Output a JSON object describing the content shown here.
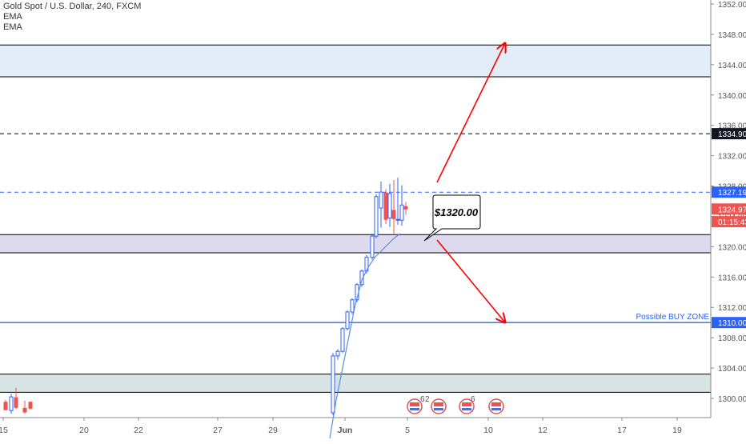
{
  "legend": {
    "symbol_line": "Gold Spot / U.S. Dollar, 240, FXCM",
    "indicator_1": "EMA",
    "indicator_2": "EMA"
  },
  "callout": {
    "text": "$1320.00"
  },
  "zone_label": "Possible BUY ZONE",
  "price_axis": {
    "ticks": [
      1352,
      1348,
      1344,
      1340,
      1336,
      1332,
      1328,
      1324,
      1320,
      1316,
      1312,
      1308,
      1304,
      1300
    ],
    "tick_labels": [
      "1352.00",
      "1348.00",
      "1344.00",
      "1340.00",
      "1336.00",
      "1332.00",
      "1328.00",
      "1324.00",
      "1320.00",
      "1316.00",
      "1312.00",
      "1308.00",
      "1304.00",
      "1300.00"
    ],
    "badges": [
      {
        "label": "1334.90",
        "value": 1334.9,
        "color": "#131722"
      },
      {
        "label": "1327.19",
        "value": 1327.19,
        "color": "#2962ff"
      },
      {
        "label": "1324.97",
        "value": 1324.97,
        "color": "#ef5350"
      },
      {
        "label": "01:15:43",
        "value": 1323.3,
        "color": "#ef5350"
      },
      {
        "label": "1310.00",
        "value": 1310.0,
        "color": "#2962ff"
      }
    ]
  },
  "time_axis": {
    "labels": [
      "15",
      "20",
      "22",
      "27",
      "29",
      "Jun",
      "5",
      "10",
      "12",
      "17",
      "19"
    ]
  },
  "event_markers": [
    "6",
    "2",
    "6"
  ],
  "chart_data": {
    "type": "candlestick",
    "title": "Gold Spot / U.S. Dollar, 240, FXCM",
    "ylim": [
      1298,
      1353
    ],
    "levels": {
      "dashed_black": 1334.9,
      "dashed_blue": 1327.19,
      "buy_zone_line": 1310.0
    },
    "zones": [
      {
        "from": 1342.4,
        "to": 1346.6,
        "color": "#e3ecf9"
      },
      {
        "from": 1319.2,
        "to": 1321.6,
        "color": "#ddd9ef"
      },
      {
        "from": 1300.8,
        "to": 1303.2,
        "color": "#d6e4e4"
      }
    ],
    "candles": [
      {
        "o": 1299.5,
        "h": 1299.8,
        "l": 1298.5,
        "c": 1298.5
      },
      {
        "o": 1298.4,
        "h": 1300.6,
        "l": 1298.0,
        "c": 1300.2
      },
      {
        "o": 1300.1,
        "h": 1301.4,
        "l": 1298.6,
        "c": 1298.8
      },
      {
        "o": 1298.7,
        "h": 1299.7,
        "l": 1298.0,
        "c": 1298.2
      },
      {
        "o": 1299.5,
        "h": 1299.6,
        "l": 1298.5,
        "c": 1298.7
      },
      {
        "o": 1298.1,
        "h": 1306.0,
        "l": 1297.8,
        "c": 1305.6
      },
      {
        "o": 1305.6,
        "h": 1306.5,
        "l": 1305.1,
        "c": 1306.2
      },
      {
        "o": 1306.2,
        "h": 1309.4,
        "l": 1306.0,
        "c": 1309.2
      },
      {
        "o": 1309.2,
        "h": 1311.6,
        "l": 1309.0,
        "c": 1311.4
      },
      {
        "o": 1311.4,
        "h": 1313.2,
        "l": 1311.1,
        "c": 1313.0
      },
      {
        "o": 1313.0,
        "h": 1315.2,
        "l": 1312.7,
        "c": 1315.0
      },
      {
        "o": 1315.0,
        "h": 1317.0,
        "l": 1314.7,
        "c": 1316.8
      },
      {
        "o": 1316.8,
        "h": 1318.9,
        "l": 1316.5,
        "c": 1318.6
      },
      {
        "o": 1318.6,
        "h": 1321.7,
        "l": 1318.3,
        "c": 1321.4
      },
      {
        "o": 1321.4,
        "h": 1326.9,
        "l": 1321.1,
        "c": 1326.6
      },
      {
        "o": 1325.1,
        "h": 1328.6,
        "l": 1322.5,
        "c": 1327.2
      },
      {
        "o": 1327.1,
        "h": 1327.6,
        "l": 1323.0,
        "c": 1323.6
      },
      {
        "o": 1323.8,
        "h": 1328.3,
        "l": 1322.6,
        "c": 1327.0
      },
      {
        "o": 1324.8,
        "h": 1328.8,
        "l": 1321.7,
        "c": 1323.7
      },
      {
        "o": 1323.5,
        "h": 1329.1,
        "l": 1322.9,
        "c": 1323.6
      },
      {
        "o": 1323.5,
        "h": 1328.1,
        "l": 1322.8,
        "c": 1325.5
      },
      {
        "o": 1325.3,
        "h": 1325.9,
        "l": 1324.2,
        "c": 1324.97
      }
    ]
  },
  "colors": {
    "up": "#2962ff",
    "down": "#ef5350",
    "grid_text": "#555555",
    "arrow": "#ff0000",
    "ema": "#5b8cdc"
  }
}
